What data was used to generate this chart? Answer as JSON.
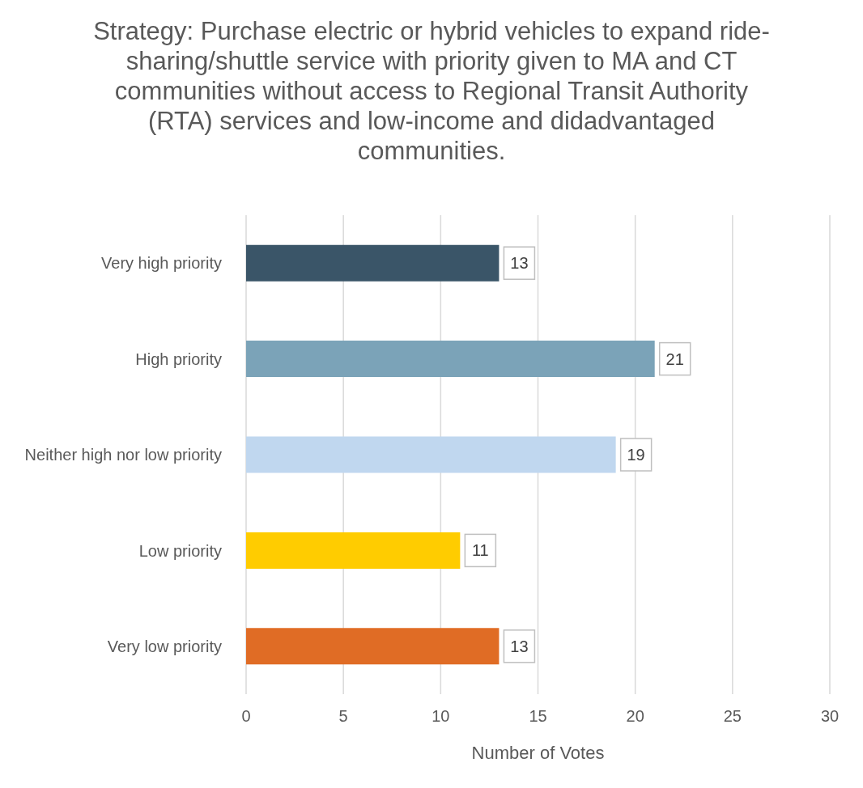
{
  "chart_data": {
    "type": "bar",
    "orientation": "horizontal",
    "title": "Strategy: Purchase electric or hybrid vehicles to expand ride-sharing/shuttle service with priority given to MA and CT communities without access to Regional Transit Authority (RTA) services and low-income and didadvantaged communities.",
    "categories": [
      "Very high priority",
      "High priority",
      "Neither high nor low priority",
      "Low priority",
      "Very low priority"
    ],
    "values": [
      13,
      21,
      19,
      11,
      13
    ],
    "colors": [
      "#3a5568",
      "#7ba3b8",
      "#c0d7ef",
      "#ffcc00",
      "#e06c25"
    ],
    "xlabel": "Number of Votes",
    "xlim": [
      0,
      30
    ],
    "xticks": [
      0,
      5,
      10,
      15,
      20,
      25,
      30
    ],
    "grid": "x",
    "data_labels": true,
    "legend": false
  }
}
